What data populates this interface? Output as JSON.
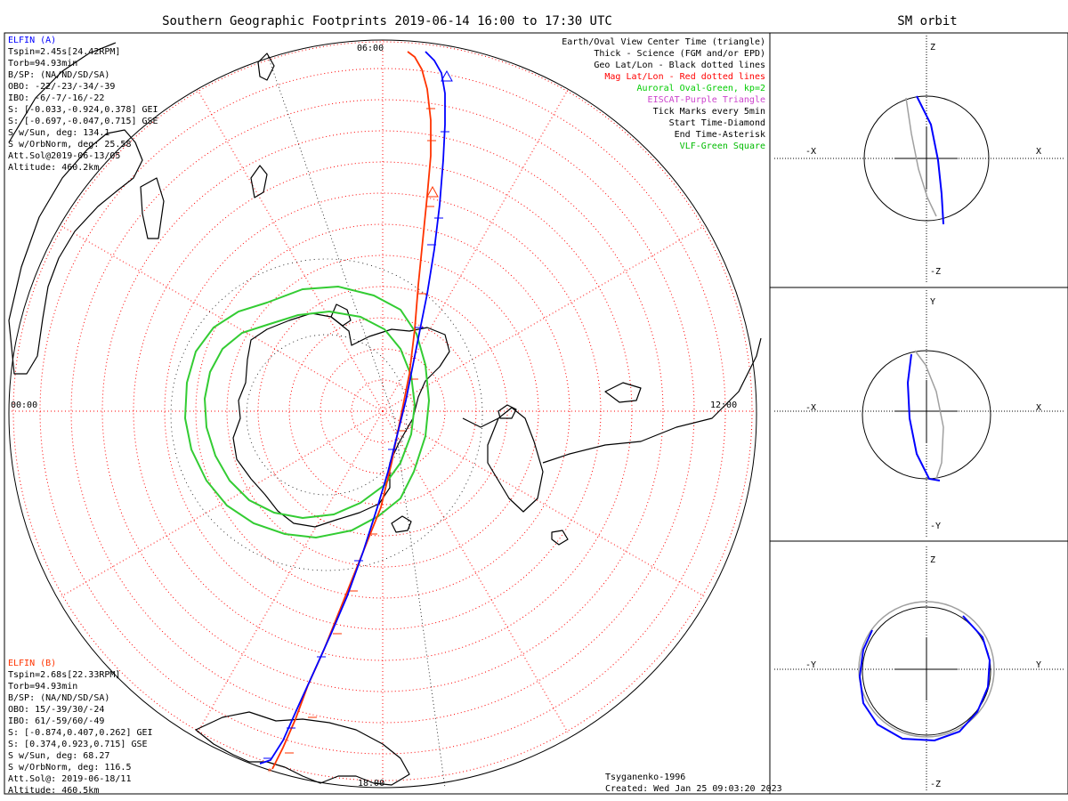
{
  "title": "Southern Geographic Footprints 2019-06-14 16:00 to 17:30 UTC",
  "orbit_title": "SM orbit",
  "colors": {
    "elfin_a": "#0000ff",
    "elfin_b": "#ff2200",
    "mag_grid": "#ff0000",
    "geo_grid": "#000000",
    "auroral_oval": "#00cc00",
    "eiscat": "#cc44cc",
    "vlf": "#00bb00",
    "orbit_grey": "#a0a0a0"
  },
  "time_labels": {
    "top": "06:00",
    "left": "00:00",
    "right": "12:00",
    "bottom": "18:00"
  },
  "elfin_a": {
    "name": "ELFIN (A)",
    "lines": [
      "Tspin=2.45s[24.42RPM]",
      "Torb=94.93min",
      "B/SP: (NA/ND/SD/SA)",
      "OBO: -22/-23/-34/-39",
      "IBO: -6/-7/-16/-22",
      "S: [-0.033,-0.924,0.378] GEI",
      "S: [-0.697,-0.047,0.715] GSE",
      "S w/Sun, deg: 134.1",
      "S w/OrbNorm, deg: 25.58",
      "Att.Sol@2019-06-13/05",
      "Altitude: 460.2km"
    ]
  },
  "elfin_b": {
    "name": "ELFIN (B)",
    "lines": [
      "Tspin=2.68s[22.33RPM]",
      "Torb=94.93min",
      "B/SP: (NA/ND/SD/SA)",
      "OBO: 15/-39/30/-24",
      "IBO: 61/-59/60/-49",
      "S: [-0.874,0.407,0.262] GEI",
      "S: [0.374,0.923,0.715] GSE",
      "S w/Sun, deg: 68.27",
      "S w/OrbNorm, deg: 116.5",
      "Att.Sol@: 2019-06-18/11",
      "Altitude: 460.5km"
    ]
  },
  "legend": [
    {
      "text": "Earth/Oval View Center Time (triangle)",
      "color": "#000000"
    },
    {
      "text": "Thick - Science (FGM and/or EPD)",
      "color": "#000000"
    },
    {
      "text": "Geo Lat/Lon - Black dotted lines",
      "color": "#000000"
    },
    {
      "text": "Mag Lat/Lon - Red dotted lines",
      "color": "#ff0000"
    },
    {
      "text": "Auroral Oval-Green, kp=2",
      "color": "#00cc00"
    },
    {
      "text": "EISCAT-Purple Triangle",
      "color": "#cc44cc"
    },
    {
      "text": "Tick Marks every 5min",
      "color": "#000000"
    },
    {
      "text": "Start Time-Diamond",
      "color": "#000000"
    },
    {
      "text": "End Time-Asterisk",
      "color": "#000000"
    },
    {
      "text": "VLF-Green Square",
      "color": "#00bb00"
    }
  ],
  "credits": {
    "model": "Tsyganenko-1996",
    "created": "Created: Wed Jan 25 09:03:20 2023"
  },
  "orbit_panels": [
    {
      "top": "Z",
      "bottom": "-Z",
      "left": "-X",
      "right": "X"
    },
    {
      "top": "Y",
      "bottom": "-Y",
      "left": "-X",
      "right": "X"
    },
    {
      "top": "Z",
      "bottom": "-Z",
      "left": "-Y",
      "right": "Y"
    }
  ]
}
